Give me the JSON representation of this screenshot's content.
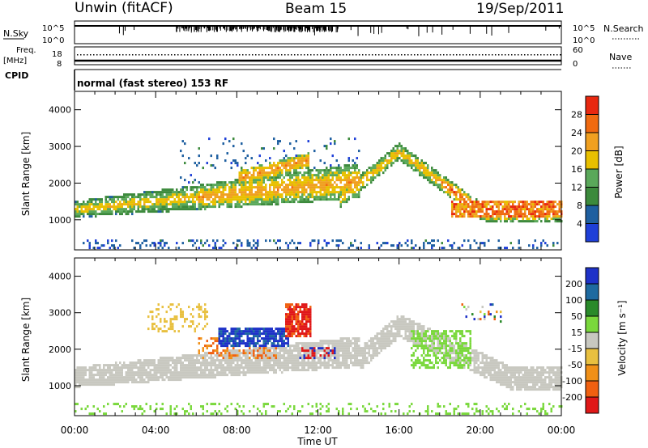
{
  "header": {
    "site": "Unwin (fitACF)",
    "beam": "Beam 15",
    "date": "19/Sep/2011"
  },
  "left_labels": {
    "nsky": "N.Sky",
    "freq_line1": "Freq.",
    "freq_line2": "[MHz]",
    "cpid": "CPID"
  },
  "right_labels": {
    "nsearch": "N.Search",
    "nave": "Nave"
  },
  "noise_axis": {
    "left_ticks": [
      "10^5",
      "10^0"
    ],
    "right_ticks": [
      "10^5",
      "10^0"
    ]
  },
  "freq_axis": {
    "left_ticks": [
      "18",
      "8"
    ],
    "right_ticks": [
      "60",
      "0"
    ]
  },
  "cpid_text": "normal (fast stereo) 153 RF",
  "x_axis": {
    "label": "Time UT",
    "ticks": [
      "00:00",
      "04:00",
      "08:00",
      "12:00",
      "16:00",
      "20:00",
      "00:00"
    ]
  },
  "colors": {
    "power": [
      "#1e3fd8",
      "#1e5fa0",
      "#3c8a3c",
      "#5aa85a",
      "#e8c000",
      "#f0a020",
      "#f06a10",
      "#e82810"
    ],
    "velocity": [
      "#1e32c8",
      "#1e6aa0",
      "#2a8a2a",
      "#7ad83c",
      "#c8c8c0",
      "#e8c040",
      "#f09018",
      "#f06010",
      "#e01818"
    ]
  },
  "chart_data": [
    {
      "type": "heatmap",
      "name": "Power",
      "ylabel": "Slant Range [km]",
      "xlabel": "Time UT",
      "xlim_hours": [
        0,
        24
      ],
      "ylim_km": [
        180,
        4500
      ],
      "yticks": [
        "1000",
        "2000",
        "3000",
        "4000"
      ],
      "colorbar": {
        "label": "Power [dB]",
        "range": [
          0,
          32
        ],
        "tick_labels": [
          "4",
          "8",
          "12",
          "16",
          "20",
          "24",
          "28"
        ]
      },
      "features": [
        {
          "desc": "main scatter band",
          "t_start": 0,
          "t_end": 14,
          "range_km": [
            1000,
            2000
          ],
          "peak_db": 20
        },
        {
          "desc": "upper scatter patch",
          "t_start": 9,
          "t_end": 11.5,
          "range_km": [
            2100,
            2600
          ],
          "peak_db": 24
        },
        {
          "desc": "ground scatter arc",
          "t_start": 13,
          "t_end": 24,
          "range_km": [
            900,
            2900
          ],
          "peak_db": 30
        }
      ]
    },
    {
      "type": "heatmap",
      "name": "Velocity",
      "ylabel": "Slant Range [km]",
      "xlabel": "Time UT",
      "xlim_hours": [
        0,
        24
      ],
      "ylim_km": [
        180,
        4500
      ],
      "yticks": [
        "1000",
        "2000",
        "3000",
        "4000"
      ],
      "colorbar": {
        "label": "Velocity [m s⁻¹]",
        "range": [
          -250,
          250
        ],
        "tick_labels": [
          "200",
          "100",
          "50",
          "15",
          "-15",
          "-50",
          "-100",
          "-200"
        ]
      },
      "features": [
        {
          "desc": "ground scatter (grey, low velocity)",
          "t_start": 0,
          "t_end": 24,
          "range_km": [
            900,
            2800
          ],
          "velocity": 0
        },
        {
          "desc": "positive flow patch",
          "t_start": 7,
          "t_end": 10.5,
          "range_km": [
            2000,
            2600
          ],
          "velocity": 200
        },
        {
          "desc": "negative flow patch",
          "t_start": 10.5,
          "t_end": 11.5,
          "range_km": [
            2400,
            3200
          ],
          "velocity": -200
        },
        {
          "desc": "green positive patch",
          "t_start": 16.5,
          "t_end": 20,
          "range_km": [
            1400,
            2600
          ],
          "velocity": 40
        }
      ]
    }
  ]
}
